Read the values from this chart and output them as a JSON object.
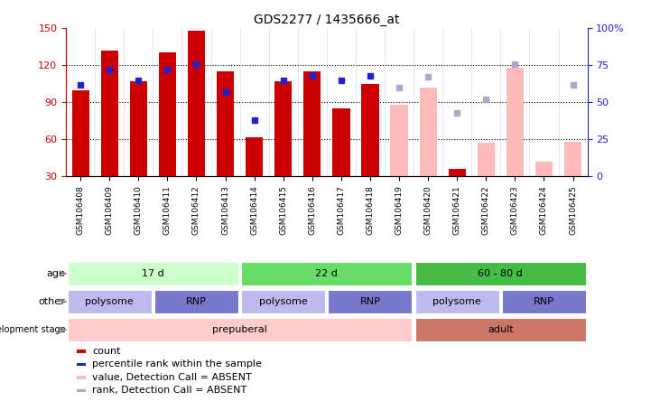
{
  "title": "GDS2277 / 1435666_at",
  "samples": [
    "GSM106408",
    "GSM106409",
    "GSM106410",
    "GSM106411",
    "GSM106412",
    "GSM106413",
    "GSM106414",
    "GSM106415",
    "GSM106416",
    "GSM106417",
    "GSM106418",
    "GSM106419",
    "GSM106420",
    "GSM106421",
    "GSM106422",
    "GSM106423",
    "GSM106424",
    "GSM106425"
  ],
  "count_values": [
    100,
    132,
    107,
    130,
    148,
    115,
    62,
    107,
    115,
    85,
    105,
    null,
    null,
    36,
    null,
    null,
    null,
    null
  ],
  "count_absent": [
    null,
    null,
    null,
    null,
    null,
    null,
    null,
    null,
    null,
    null,
    null,
    88,
    102,
    null,
    57,
    118,
    42,
    58
  ],
  "rank_values": [
    62,
    72,
    65,
    72,
    76,
    57,
    38,
    65,
    68,
    65,
    68,
    null,
    null,
    null,
    null,
    null,
    null,
    null
  ],
  "rank_absent": [
    null,
    null,
    null,
    null,
    null,
    null,
    null,
    null,
    null,
    null,
    null,
    60,
    67,
    43,
    52,
    76,
    null,
    62
  ],
  "ylim_left": [
    30,
    150
  ],
  "ylim_right": [
    0,
    100
  ],
  "yticks_left": [
    30,
    60,
    90,
    120,
    150
  ],
  "ytick_labels_left": [
    "30",
    "60",
    "90",
    "120",
    "150"
  ],
  "yticks_right": [
    0,
    25,
    50,
    75,
    100
  ],
  "ytick_labels_right": [
    "0",
    "25",
    "50",
    "75",
    "100%"
  ],
  "color_count": "#cc0000",
  "color_rank": "#2222cc",
  "color_count_absent": "#ffbbbb",
  "color_rank_absent": "#aaaacc",
  "bar_width": 0.6,
  "age_groups": [
    {
      "label": "17 d",
      "start": 0,
      "end": 5,
      "color": "#ccffcc"
    },
    {
      "label": "22 d",
      "start": 6,
      "end": 11,
      "color": "#66dd66"
    },
    {
      "label": "60 - 80 d",
      "start": 12,
      "end": 17,
      "color": "#44bb44"
    }
  ],
  "other_groups": [
    {
      "label": "polysome",
      "start": 0,
      "end": 2,
      "color": "#bbbbee"
    },
    {
      "label": "RNP",
      "start": 3,
      "end": 5,
      "color": "#7777cc"
    },
    {
      "label": "polysome",
      "start": 6,
      "end": 8,
      "color": "#bbbbee"
    },
    {
      "label": "RNP",
      "start": 9,
      "end": 11,
      "color": "#7777cc"
    },
    {
      "label": "polysome",
      "start": 12,
      "end": 14,
      "color": "#bbbbee"
    },
    {
      "label": "RNP",
      "start": 15,
      "end": 17,
      "color": "#7777cc"
    }
  ],
  "dev_groups": [
    {
      "label": "prepuberal",
      "start": 0,
      "end": 11,
      "color": "#ffcccc"
    },
    {
      "label": "adult",
      "start": 12,
      "end": 17,
      "color": "#cc7766"
    }
  ],
  "legend_items": [
    {
      "color": "#cc0000",
      "label": "count"
    },
    {
      "color": "#2222cc",
      "label": "percentile rank within the sample"
    },
    {
      "color": "#ffbbbb",
      "label": "value, Detection Call = ABSENT"
    },
    {
      "color": "#aaaacc",
      "label": "rank, Detection Call = ABSENT"
    }
  ],
  "fig_width": 7.31,
  "fig_height": 4.44,
  "dpi": 100
}
